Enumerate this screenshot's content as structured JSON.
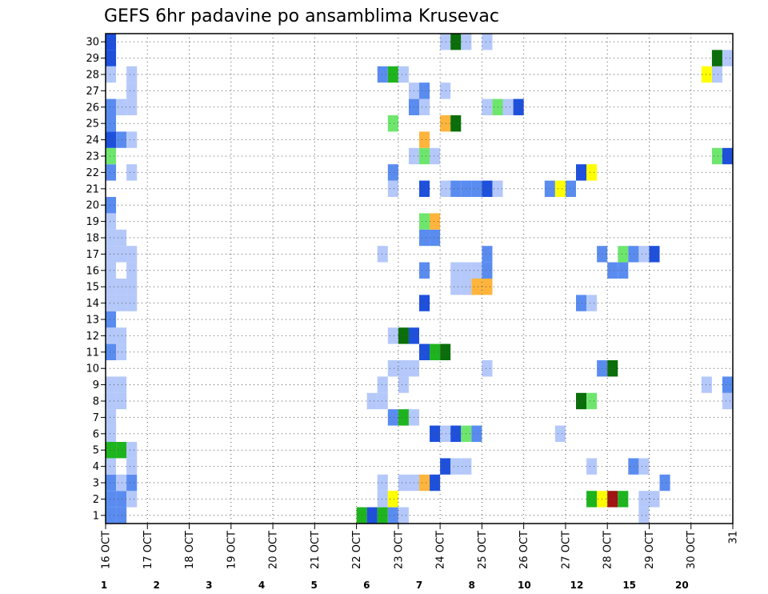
{
  "chart_data": {
    "type": "heatmap",
    "title": "GEFS 6hr padavine po ansamblima Krusevac",
    "members": [
      1,
      2,
      3,
      4,
      5,
      6,
      7,
      8,
      9,
      10,
      11,
      12,
      13,
      14,
      15,
      16,
      17,
      18,
      19,
      20,
      21,
      22,
      23,
      24,
      25,
      26,
      27,
      28,
      29,
      30
    ],
    "x_ticks": [
      {
        "day": 16,
        "label": "16 OCT"
      },
      {
        "day": 17,
        "label": "17 OCT"
      },
      {
        "day": 18,
        "label": "18 OCT"
      },
      {
        "day": 19,
        "label": "19 OCT"
      },
      {
        "day": 20,
        "label": "20 OCT"
      },
      {
        "day": 21,
        "label": "21 OCT"
      },
      {
        "day": 22,
        "label": "22 OCT"
      },
      {
        "day": 23,
        "label": "23 OCT"
      },
      {
        "day": 24,
        "label": "24 OCT"
      },
      {
        "day": 25,
        "label": "25 OCT"
      },
      {
        "day": 26,
        "label": "26 OCT"
      },
      {
        "day": 27,
        "label": "27 OCT"
      },
      {
        "day": 28,
        "label": "28 OCT"
      },
      {
        "day": 29,
        "label": "29 OCT"
      },
      {
        "day": 30,
        "label": "30 OCT"
      },
      {
        "day": 31,
        "label": "31"
      }
    ],
    "x_range": [
      16,
      31
    ],
    "step_hours": 6,
    "grid": true,
    "colorbar": {
      "levels": [
        "1",
        "2",
        "3",
        "4",
        "5",
        "6",
        "7",
        "8",
        "10",
        "12",
        "15",
        "20"
      ],
      "colors": [
        "#b4c8fa",
        "#5a8cf0",
        "#1e50dc",
        "#6ee66e",
        "#1eb41e",
        "#0a6e0a",
        "#ffff00",
        "#ffb43c",
        "#ff7814",
        "#e61e0a",
        "#a01414",
        "#640000"
      ]
    },
    "cells": [
      [
        1,
        1,
        2
      ],
      [
        1,
        2,
        2
      ],
      [
        1,
        25,
        5
      ],
      [
        1,
        26,
        3
      ],
      [
        1,
        27,
        5
      ],
      [
        1,
        28,
        2
      ],
      [
        1,
        29,
        1
      ],
      [
        1,
        52,
        1
      ],
      [
        2,
        1,
        2
      ],
      [
        2,
        2,
        2
      ],
      [
        2,
        3,
        1
      ],
      [
        2,
        27,
        1
      ],
      [
        2,
        28,
        7
      ],
      [
        2,
        47,
        5
      ],
      [
        2,
        48,
        7
      ],
      [
        2,
        49,
        11
      ],
      [
        2,
        50,
        5
      ],
      [
        2,
        52,
        1
      ],
      [
        2,
        53,
        1
      ],
      [
        3,
        1,
        2
      ],
      [
        3,
        2,
        1
      ],
      [
        3,
        3,
        2
      ],
      [
        3,
        27,
        1
      ],
      [
        3,
        29,
        1
      ],
      [
        3,
        30,
        1
      ],
      [
        3,
        31,
        8
      ],
      [
        3,
        32,
        3
      ],
      [
        3,
        54,
        2
      ],
      [
        4,
        1,
        1
      ],
      [
        4,
        3,
        1
      ],
      [
        4,
        33,
        3
      ],
      [
        4,
        34,
        1
      ],
      [
        4,
        35,
        1
      ],
      [
        4,
        47,
        1
      ],
      [
        4,
        51,
        2
      ],
      [
        4,
        52,
        1
      ],
      [
        5,
        1,
        5
      ],
      [
        5,
        2,
        5
      ],
      [
        5,
        3,
        1
      ],
      [
        6,
        1,
        1
      ],
      [
        6,
        32,
        3
      ],
      [
        6,
        33,
        1
      ],
      [
        6,
        34,
        3
      ],
      [
        6,
        35,
        4
      ],
      [
        6,
        36,
        2
      ],
      [
        6,
        44,
        1
      ],
      [
        7,
        1,
        1
      ],
      [
        7,
        28,
        2
      ],
      [
        7,
        29,
        5
      ],
      [
        7,
        30,
        1
      ],
      [
        8,
        1,
        1
      ],
      [
        8,
        2,
        1
      ],
      [
        8,
        26,
        1
      ],
      [
        8,
        27,
        1
      ],
      [
        8,
        46,
        6
      ],
      [
        8,
        47,
        4
      ],
      [
        8,
        60,
        1
      ],
      [
        9,
        1,
        1
      ],
      [
        9,
        2,
        1
      ],
      [
        9,
        27,
        1
      ],
      [
        9,
        29,
        1
      ],
      [
        9,
        58,
        1
      ],
      [
        9,
        60,
        2
      ],
      [
        10,
        28,
        1
      ],
      [
        10,
        29,
        1
      ],
      [
        10,
        30,
        1
      ],
      [
        10,
        37,
        1
      ],
      [
        10,
        48,
        2
      ],
      [
        10,
        49,
        6
      ],
      [
        11,
        1,
        2
      ],
      [
        11,
        2,
        1
      ],
      [
        11,
        31,
        3
      ],
      [
        11,
        32,
        5
      ],
      [
        11,
        33,
        6
      ],
      [
        12,
        1,
        1
      ],
      [
        12,
        2,
        1
      ],
      [
        12,
        28,
        1
      ],
      [
        12,
        29,
        6
      ],
      [
        12,
        30,
        3
      ],
      [
        13,
        1,
        2
      ],
      [
        14,
        1,
        1
      ],
      [
        14,
        2,
        1
      ],
      [
        14,
        3,
        1
      ],
      [
        14,
        31,
        3
      ],
      [
        14,
        46,
        2
      ],
      [
        14,
        47,
        1
      ],
      [
        15,
        1,
        1
      ],
      [
        15,
        2,
        1
      ],
      [
        15,
        3,
        1
      ],
      [
        15,
        34,
        1
      ],
      [
        15,
        35,
        1
      ],
      [
        15,
        36,
        8
      ],
      [
        15,
        37,
        8
      ],
      [
        16,
        1,
        1
      ],
      [
        16,
        3,
        1
      ],
      [
        16,
        31,
        2
      ],
      [
        16,
        34,
        1
      ],
      [
        16,
        35,
        1
      ],
      [
        16,
        36,
        1
      ],
      [
        16,
        37,
        2
      ],
      [
        16,
        49,
        2
      ],
      [
        16,
        50,
        2
      ],
      [
        17,
        1,
        1
      ],
      [
        17,
        2,
        1
      ],
      [
        17,
        3,
        1
      ],
      [
        17,
        27,
        1
      ],
      [
        17,
        37,
        2
      ],
      [
        17,
        48,
        2
      ],
      [
        17,
        50,
        4
      ],
      [
        17,
        51,
        2
      ],
      [
        17,
        52,
        1
      ],
      [
        17,
        53,
        3
      ],
      [
        18,
        1,
        1
      ],
      [
        18,
        2,
        1
      ],
      [
        18,
        31,
        2
      ],
      [
        18,
        32,
        2
      ],
      [
        19,
        1,
        1
      ],
      [
        19,
        31,
        4
      ],
      [
        19,
        32,
        8
      ],
      [
        20,
        1,
        2
      ],
      [
        21,
        28,
        1
      ],
      [
        21,
        31,
        3
      ],
      [
        21,
        33,
        1
      ],
      [
        21,
        34,
        2
      ],
      [
        21,
        35,
        2
      ],
      [
        21,
        36,
        2
      ],
      [
        21,
        37,
        3
      ],
      [
        21,
        38,
        1
      ],
      [
        21,
        43,
        2
      ],
      [
        21,
        44,
        7
      ],
      [
        21,
        45,
        2
      ],
      [
        22,
        1,
        2
      ],
      [
        22,
        3,
        1
      ],
      [
        22,
        28,
        2
      ],
      [
        22,
        46,
        3
      ],
      [
        22,
        47,
        7
      ],
      [
        23,
        1,
        4
      ],
      [
        23,
        30,
        1
      ],
      [
        23,
        31,
        4
      ],
      [
        23,
        32,
        1
      ],
      [
        23,
        59,
        4
      ],
      [
        23,
        60,
        3
      ],
      [
        24,
        1,
        3
      ],
      [
        24,
        2,
        2
      ],
      [
        24,
        3,
        1
      ],
      [
        24,
        31,
        8
      ],
      [
        25,
        1,
        2
      ],
      [
        25,
        28,
        4
      ],
      [
        25,
        33,
        8
      ],
      [
        25,
        34,
        6
      ],
      [
        26,
        1,
        2
      ],
      [
        26,
        2,
        1
      ],
      [
        26,
        3,
        1
      ],
      [
        26,
        30,
        2
      ],
      [
        26,
        31,
        1
      ],
      [
        26,
        37,
        1
      ],
      [
        26,
        38,
        4
      ],
      [
        26,
        39,
        1
      ],
      [
        26,
        40,
        3
      ],
      [
        27,
        3,
        1
      ],
      [
        27,
        30,
        1
      ],
      [
        27,
        31,
        2
      ],
      [
        27,
        33,
        1
      ],
      [
        28,
        1,
        1
      ],
      [
        28,
        3,
        1
      ],
      [
        28,
        27,
        2
      ],
      [
        28,
        28,
        5
      ],
      [
        28,
        29,
        1
      ],
      [
        28,
        58,
        7
      ],
      [
        28,
        59,
        1
      ],
      [
        29,
        1,
        3
      ],
      [
        29,
        59,
        6
      ],
      [
        29,
        60,
        1
      ],
      [
        30,
        1,
        3
      ],
      [
        30,
        33,
        1
      ],
      [
        30,
        34,
        6
      ],
      [
        30,
        35,
        1
      ],
      [
        30,
        37,
        1
      ]
    ]
  }
}
